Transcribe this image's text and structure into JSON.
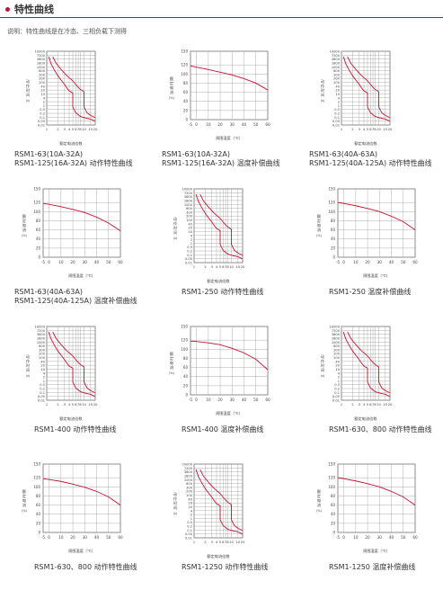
{
  "page": {
    "title": "特性曲线",
    "note": "说明：特性曲线是在冷态、三相负载下测得"
  },
  "colors": {
    "accent": "#c4122f",
    "curve": "#c4122f",
    "grid": "#9a9a9a"
  },
  "chart_common": {
    "trip": {
      "y_ticks": [
        "10000",
        "7200",
        "3600",
        "1800",
        "1000",
        "600",
        "300",
        "200",
        "100",
        "40",
        "20",
        "10",
        "4",
        "2",
        "1",
        "0.5",
        "0.2",
        "0.1",
        "0.05",
        "0.01"
      ],
      "x_ticks": [
        "1",
        "2",
        "3",
        "4",
        "5",
        "6",
        "7",
        "8",
        "10",
        "15",
        "20"
      ],
      "ylabel": "动作时间",
      "y_unit": "(s)",
      "xlabel": "额定电流倍数"
    },
    "temp": {
      "y_ticks": [
        "150",
        "120",
        "100",
        "80",
        "60",
        "40",
        "20",
        "0"
      ],
      "x_ticks": [
        "-5",
        "0",
        "10",
        "20",
        "30",
        "40",
        "50",
        "60"
      ],
      "ylabel": "额定电流",
      "y_unit": "(%)",
      "xlabel": "周围温度（℃）"
    }
  },
  "chart_data": [
    {
      "type": "line",
      "kind": "trip",
      "caption": [
        "RSM1-63(10A-32A)",
        "RSM1-125(16A-32A) 动作特性曲线"
      ],
      "xlabel": "额定电流倍数",
      "ylabel": "动作时间(s)",
      "series": [
        {
          "x": [
            1.13,
            1.3,
            1.6,
            2,
            2.5,
            3,
            3.5,
            4,
            5,
            5,
            6,
            8,
            10,
            15,
            20
          ],
          "y": [
            3600,
            1000,
            300,
            100,
            40,
            20,
            10,
            6,
            4,
            0.3,
            0.1,
            0.05,
            0.04,
            0.03,
            0.02
          ]
        },
        {
          "x": [
            1.45,
            1.8,
            2.5,
            3.5,
            5,
            6,
            7,
            8,
            10,
            10,
            12,
            15,
            20
          ],
          "y": [
            3600,
            1000,
            300,
            100,
            40,
            20,
            12,
            8,
            5,
            0.3,
            0.1,
            0.06,
            0.04
          ]
        }
      ]
    },
    {
      "type": "line",
      "kind": "temp",
      "caption": [
        "RSM1-63(10A-32A)",
        "RSM1-125(16A-32A) 温度补偿曲线"
      ],
      "xlabel": "周围温度（℃）",
      "ylabel": "额定电流(%)",
      "series": [
        {
          "x": [
            -5,
            0,
            10,
            20,
            30,
            40,
            50,
            60
          ],
          "y": [
            118,
            115,
            110,
            104,
            98,
            90,
            80,
            65
          ]
        }
      ]
    },
    {
      "type": "line",
      "kind": "trip",
      "caption": [
        "RSM1-63(40A-63A)",
        "RSM1-125(40A-125A) 动作特性曲线"
      ],
      "xlabel": "额定电流倍数",
      "ylabel": "动作时间(s)",
      "series": [
        {
          "x": [
            1.13,
            1.3,
            1.6,
            2,
            2.5,
            3,
            3.5,
            4,
            5,
            5,
            6,
            8,
            10,
            15,
            20
          ],
          "y": [
            3600,
            1000,
            300,
            100,
            40,
            20,
            10,
            6,
            4,
            0.3,
            0.1,
            0.05,
            0.04,
            0.03,
            0.02
          ]
        },
        {
          "x": [
            1.45,
            1.8,
            2.5,
            3.5,
            5,
            6,
            7,
            8,
            10,
            10,
            12,
            15,
            20
          ],
          "y": [
            3600,
            1000,
            300,
            100,
            40,
            20,
            12,
            8,
            5,
            0.3,
            0.1,
            0.06,
            0.04
          ]
        }
      ]
    },
    {
      "type": "line",
      "kind": "temp",
      "caption": [
        "RSM1-63(40A-63A)",
        "RSM1-125(40A-125A) 温度补偿曲线"
      ],
      "xlabel": "周围温度（℃）",
      "ylabel": "额定电流(%)",
      "series": [
        {
          "x": [
            -5,
            0,
            10,
            20,
            30,
            40,
            50,
            60
          ],
          "y": [
            118,
            116,
            111,
            105,
            98,
            88,
            75,
            58
          ]
        }
      ]
    },
    {
      "type": "line",
      "kind": "trip",
      "caption": [
        "RSM1-250 动作特性曲线"
      ],
      "xlabel": "额定电流倍数",
      "ylabel": "动作时间(s)",
      "series": [
        {
          "x": [
            1.13,
            1.3,
            1.6,
            2,
            2.5,
            3,
            3.5,
            4,
            5,
            5,
            6,
            8,
            10,
            15,
            20
          ],
          "y": [
            3600,
            1000,
            300,
            100,
            40,
            20,
            10,
            6,
            4,
            0.3,
            0.1,
            0.05,
            0.04,
            0.03,
            0.02
          ]
        },
        {
          "x": [
            1.45,
            1.8,
            2.5,
            3.5,
            5,
            6,
            7,
            8,
            10,
            10,
            12,
            15,
            20
          ],
          "y": [
            3600,
            1000,
            300,
            100,
            40,
            20,
            12,
            8,
            5,
            0.3,
            0.1,
            0.06,
            0.04
          ]
        }
      ]
    },
    {
      "type": "line",
      "kind": "temp",
      "caption": [
        "RSM1-250 温度补偿曲线"
      ],
      "xlabel": "周围温度（℃）",
      "ylabel": "额定电流(%)",
      "series": [
        {
          "x": [
            -5,
            0,
            10,
            20,
            30,
            40,
            50,
            60
          ],
          "y": [
            120,
            118,
            113,
            107,
            100,
            90,
            78,
            60
          ]
        }
      ]
    },
    {
      "type": "line",
      "kind": "trip",
      "caption": [
        "RSM1-400 动作特性曲线"
      ],
      "xlabel": "额定电流倍数",
      "ylabel": "动作时间(s)",
      "series": [
        {
          "x": [
            1.13,
            1.3,
            1.6,
            2,
            2.5,
            3,
            3.5,
            4,
            5,
            5,
            6,
            8,
            10,
            15,
            20
          ],
          "y": [
            3600,
            1000,
            300,
            100,
            40,
            20,
            10,
            6,
            4,
            0.3,
            0.1,
            0.05,
            0.04,
            0.03,
            0.02
          ]
        },
        {
          "x": [
            1.45,
            1.8,
            2.5,
            3.5,
            5,
            6,
            7,
            8,
            10,
            10,
            12,
            15,
            20
          ],
          "y": [
            3600,
            1000,
            300,
            100,
            40,
            20,
            12,
            8,
            5,
            0.3,
            0.1,
            0.06,
            0.04
          ]
        }
      ]
    },
    {
      "type": "line",
      "kind": "temp",
      "caption": [
        "RSM1-400 温度补偿曲线"
      ],
      "xlabel": "周围温度（℃）",
      "ylabel": "额定电流(%)",
      "series": [
        {
          "x": [
            -5,
            0,
            10,
            20,
            30,
            40,
            50,
            60
          ],
          "y": [
            118,
            117,
            114,
            110,
            102,
            92,
            78,
            55
          ]
        }
      ]
    },
    {
      "type": "line",
      "kind": "trip",
      "caption": [
        "RSM1-630、800 动作特性曲线"
      ],
      "xlabel": "额定电流倍数",
      "ylabel": "动作时间(s)",
      "series": [
        {
          "x": [
            1.13,
            1.3,
            1.6,
            2,
            2.5,
            3,
            3.5,
            4,
            5,
            5,
            6,
            8,
            10,
            15,
            20
          ],
          "y": [
            3600,
            1000,
            300,
            100,
            40,
            20,
            10,
            6,
            4,
            0.3,
            0.1,
            0.05,
            0.04,
            0.03,
            0.02
          ]
        },
        {
          "x": [
            1.45,
            1.8,
            2.5,
            3.5,
            5,
            6,
            7,
            8,
            10,
            10,
            12,
            15,
            20
          ],
          "y": [
            3600,
            1000,
            300,
            100,
            40,
            20,
            12,
            8,
            5,
            0.3,
            0.1,
            0.06,
            0.04
          ]
        }
      ]
    },
    {
      "type": "line",
      "kind": "temp",
      "caption": [
        "RSM1-630、800 动作特性曲线"
      ],
      "xlabel": "周围温度（℃）",
      "ylabel": "额定电流(%)",
      "series": [
        {
          "x": [
            -5,
            0,
            10,
            20,
            30,
            40,
            50,
            60
          ],
          "y": [
            118,
            116,
            112,
            106,
            99,
            90,
            78,
            60
          ]
        }
      ]
    },
    {
      "type": "line",
      "kind": "trip",
      "caption": [
        "RSM1-1250 动作特性曲线"
      ],
      "xlabel": "额定电流倍数",
      "ylabel": "动作时间(s)",
      "series": [
        {
          "x": [
            1.13,
            1.3,
            1.6,
            2,
            2.5,
            3,
            3.5,
            4,
            5,
            5,
            6,
            8,
            10,
            15,
            20
          ],
          "y": [
            3600,
            1000,
            300,
            100,
            40,
            20,
            10,
            6,
            4,
            0.3,
            0.1,
            0.05,
            0.04,
            0.03,
            0.02
          ]
        },
        {
          "x": [
            1.45,
            1.8,
            2.5,
            3.5,
            5,
            6,
            7,
            8,
            10,
            10,
            12,
            15,
            20
          ],
          "y": [
            3600,
            1000,
            300,
            100,
            40,
            20,
            12,
            8,
            5,
            0.3,
            0.1,
            0.06,
            0.04
          ]
        }
      ]
    },
    {
      "type": "line",
      "kind": "temp",
      "caption": [
        "RSM1-1250 温度补偿曲线"
      ],
      "xlabel": "周围温度（℃）",
      "ylabel": "额定电流(%)",
      "series": [
        {
          "x": [
            -5,
            0,
            10,
            20,
            30,
            40,
            50,
            60
          ],
          "y": [
            120,
            118,
            113,
            107,
            100,
            90,
            78,
            60
          ]
        }
      ]
    }
  ]
}
